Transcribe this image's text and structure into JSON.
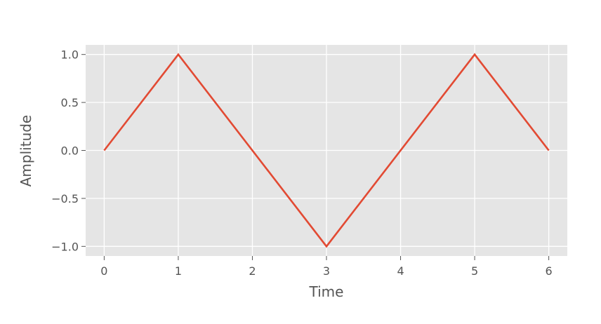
{
  "chart_data": {
    "type": "line",
    "title": "",
    "xlabel": "Time",
    "ylabel": "Amplitude",
    "xlim": [
      -0.25,
      6.25
    ],
    "ylim": [
      -1.1,
      1.1
    ],
    "xticks": [
      0,
      1,
      2,
      3,
      4,
      5,
      6
    ],
    "xtick_labels": [
      "0",
      "1",
      "2",
      "3",
      "4",
      "5",
      "6"
    ],
    "yticks": [
      1.0,
      0.5,
      0.0,
      -0.5,
      -1.0
    ],
    "ytick_labels": [
      "1.0",
      "0.5",
      "0.0",
      "−0.5",
      "−1.0"
    ],
    "grid": true,
    "x": [
      0,
      1,
      3,
      5,
      6
    ],
    "series": [
      {
        "values": [
          0,
          1,
          -1,
          1,
          0
        ],
        "color": "#e24a33"
      }
    ],
    "colors": {
      "plot_background": "#e5e5e5",
      "grid": "#ffffff",
      "tick_mark": "#555555"
    }
  }
}
